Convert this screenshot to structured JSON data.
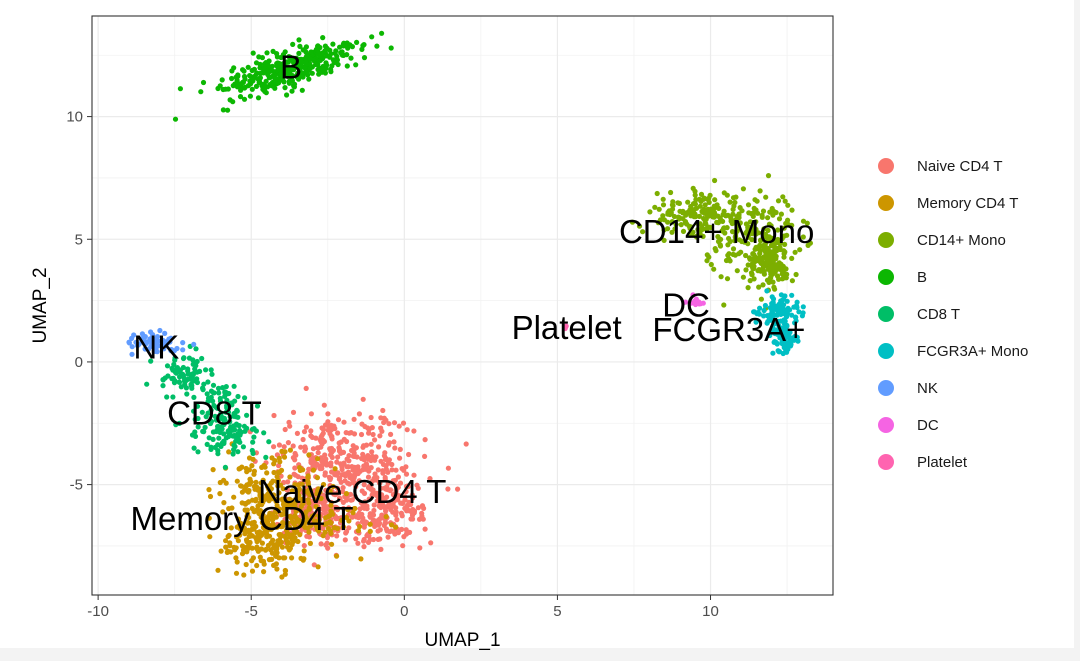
{
  "chart_data": {
    "type": "scatter",
    "title": "",
    "xlabel": "UMAP_1",
    "ylabel": "UMAP_2",
    "xlim": [
      -10.2,
      14.0
    ],
    "ylim": [
      -9.5,
      14.1
    ],
    "xticks": [
      -10,
      -5,
      0,
      5,
      10
    ],
    "yticks": [
      -5,
      0,
      5,
      10
    ],
    "x_tick_labels": [
      "-10",
      "-5",
      "0",
      "5",
      "10"
    ],
    "y_tick_labels": [
      "-5",
      "0",
      "5",
      "10"
    ],
    "grid": true,
    "legend_position": "right",
    "series": [
      {
        "name": "Naive CD4 T",
        "color": "#F8766D",
        "n": 700,
        "blobs": [
          [
            -1.2,
            -4.2,
            1.0,
            1.1,
            0
          ],
          [
            -2.6,
            -3.8,
            0.9,
            0.9,
            0
          ],
          [
            -2.8,
            -6.3,
            0.7,
            0.6,
            0
          ],
          [
            -0.6,
            -6.0,
            0.7,
            0.8,
            0
          ]
        ]
      },
      {
        "name": "Memory CD4 T",
        "color": "#CD9600",
        "n": 480,
        "blobs": [
          [
            -4.6,
            -5.3,
            0.8,
            0.8,
            0
          ],
          [
            -3.2,
            -6.2,
            1.0,
            0.8,
            0
          ],
          [
            -4.6,
            -7.3,
            0.6,
            0.7,
            0
          ]
        ]
      },
      {
        "name": "CD14+ Mono",
        "color": "#7CAE00",
        "n": 470,
        "blobs": [
          [
            9.6,
            5.9,
            0.8,
            0.45,
            0
          ],
          [
            11.3,
            5.4,
            0.7,
            0.8,
            0
          ],
          [
            12.0,
            4.0,
            0.4,
            0.6,
            0
          ]
        ]
      },
      {
        "name": "B",
        "color": "#0CB702",
        "n": 330,
        "blobs": [
          [
            -3.8,
            11.9,
            1.3,
            0.42,
            0.4
          ]
        ]
      },
      {
        "name": "CD8 T",
        "color": "#00BE67",
        "n": 240,
        "blobs": [
          [
            -7.2,
            -0.5,
            0.4,
            0.4,
            0
          ],
          [
            -6.2,
            -1.9,
            0.6,
            0.5,
            0
          ],
          [
            -5.6,
            -3.0,
            0.5,
            0.4,
            0
          ]
        ]
      },
      {
        "name": "FCGR3A+ Mono",
        "color": "#00BFC4",
        "n": 170,
        "blobs": [
          [
            12.4,
            1.0,
            0.2,
            0.3,
            0
          ],
          [
            12.3,
            2.0,
            0.35,
            0.35,
            0
          ]
        ]
      },
      {
        "name": "NK",
        "color": "#619CFF",
        "n": 65,
        "blobs": [
          [
            -8.3,
            0.8,
            0.45,
            0.2,
            0
          ]
        ]
      },
      {
        "name": "DC",
        "color": "#F564E3",
        "n": 14,
        "blobs": [
          [
            9.5,
            2.5,
            0.15,
            0.12,
            0
          ]
        ]
      },
      {
        "name": "Platelet",
        "color": "#FF64B0",
        "n": 3,
        "blobs": [
          [
            5.3,
            1.4,
            0.05,
            0.05,
            0
          ]
        ]
      }
    ],
    "cluster_labels": [
      {
        "text": "B",
        "x": -3.7,
        "y": 11.9
      },
      {
        "text": "CD14+ Mono",
        "x": 10.2,
        "y": 5.2
      },
      {
        "text": "DC",
        "x": 9.2,
        "y": 2.2
      },
      {
        "text": "FCGR3A+",
        "x": 10.6,
        "y": 1.2
      },
      {
        "text": "Platelet",
        "x": 5.3,
        "y": 1.3
      },
      {
        "text": "NK",
        "x": -8.1,
        "y": 0.5
      },
      {
        "text": "CD8 T",
        "x": -6.2,
        "y": -2.2
      },
      {
        "text": "Naive CD4 T",
        "x": -1.7,
        "y": -5.4
      },
      {
        "text": "Memory CD4 T",
        "x": -5.3,
        "y": -6.5
      }
    ]
  }
}
